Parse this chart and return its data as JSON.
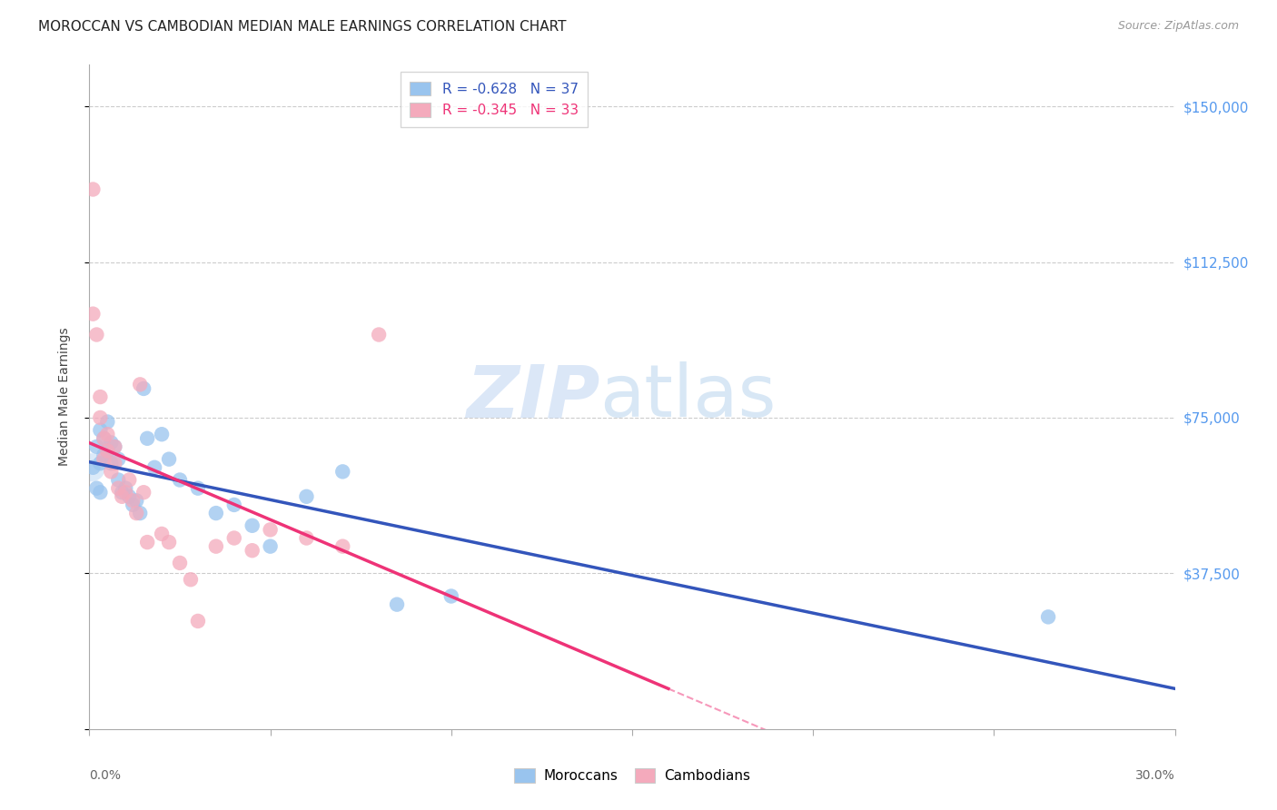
{
  "title": "MOROCCAN VS CAMBODIAN MEDIAN MALE EARNINGS CORRELATION CHART",
  "source": "Source: ZipAtlas.com",
  "ylabel": "Median Male Earnings",
  "watermark_zip": "ZIP",
  "watermark_atlas": "atlas",
  "background_color": "#ffffff",
  "grid_color": "#cccccc",
  "moroccan_color": "#99C4EE",
  "cambodian_color": "#F4AABC",
  "moroccan_line_color": "#3355BB",
  "cambodian_line_color": "#EE3377",
  "right_axis_color": "#5599EE",
  "legend_moroccan_label": "R = -0.628   N = 37",
  "legend_cambodian_label": "R = -0.345   N = 33",
  "yticks": [
    0,
    37500,
    75000,
    112500,
    150000
  ],
  "ytick_labels": [
    "",
    "$37,500",
    "$75,000",
    "$112,500",
    "$150,000"
  ],
  "xlim": [
    0.0,
    0.3
  ],
  "ylim": [
    0,
    160000
  ],
  "moroccan_x": [
    0.001,
    0.002,
    0.002,
    0.003,
    0.003,
    0.003,
    0.004,
    0.004,
    0.005,
    0.005,
    0.006,
    0.006,
    0.007,
    0.008,
    0.008,
    0.009,
    0.01,
    0.011,
    0.012,
    0.013,
    0.014,
    0.015,
    0.016,
    0.018,
    0.02,
    0.022,
    0.025,
    0.03,
    0.035,
    0.04,
    0.045,
    0.05,
    0.06,
    0.07,
    0.085,
    0.1,
    0.265
  ],
  "moroccan_y": [
    63000,
    68000,
    58000,
    72000,
    64000,
    57000,
    70000,
    66000,
    74000,
    67000,
    69000,
    64000,
    68000,
    65000,
    60000,
    57000,
    58000,
    56000,
    54000,
    55000,
    52000,
    82000,
    70000,
    63000,
    71000,
    65000,
    60000,
    58000,
    52000,
    54000,
    49000,
    44000,
    56000,
    62000,
    30000,
    32000,
    27000
  ],
  "cambodian_x": [
    0.001,
    0.002,
    0.003,
    0.003,
    0.004,
    0.004,
    0.005,
    0.005,
    0.006,
    0.007,
    0.007,
    0.008,
    0.009,
    0.01,
    0.011,
    0.012,
    0.013,
    0.014,
    0.015,
    0.016,
    0.02,
    0.022,
    0.025,
    0.028,
    0.03,
    0.035,
    0.04,
    0.045,
    0.05,
    0.06,
    0.07,
    0.08,
    0.001
  ],
  "cambodian_y": [
    130000,
    95000,
    80000,
    75000,
    70000,
    65000,
    71000,
    67000,
    62000,
    64000,
    68000,
    58000,
    56000,
    57000,
    60000,
    55000,
    52000,
    83000,
    57000,
    45000,
    47000,
    45000,
    40000,
    36000,
    26000,
    44000,
    46000,
    43000,
    48000,
    46000,
    44000,
    95000,
    100000
  ]
}
